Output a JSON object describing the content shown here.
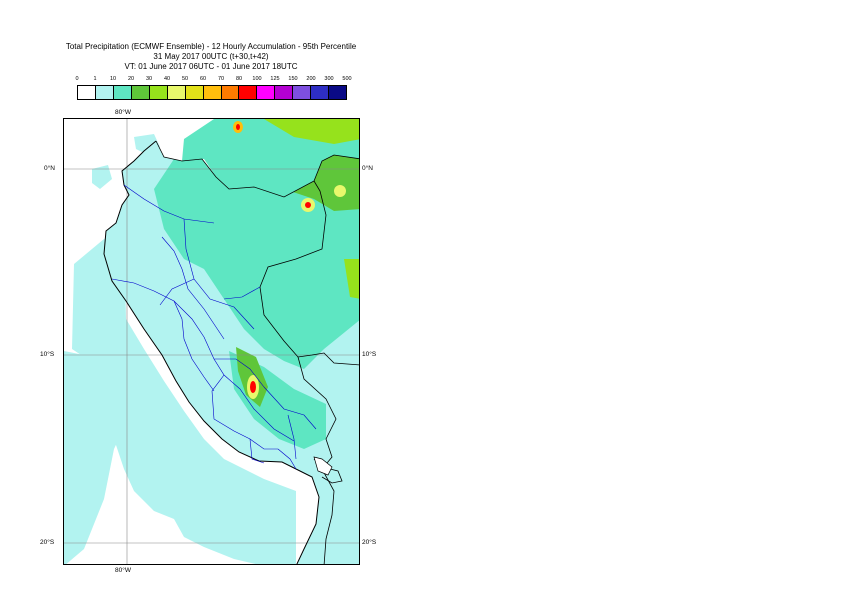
{
  "title": {
    "line1": "Total Precipitation (ECMWF Ensemble) - 12 Hourly Accumulation - 95th Percentile",
    "line2": "31 May 2017 00UTC (t+30,t+42)",
    "line3": "VT: 01 June 2017 06UTC - 01 June 2017 18UTC"
  },
  "legend": {
    "ticks": [
      "0",
      "1",
      "10",
      "20",
      "30",
      "40",
      "50",
      "60",
      "70",
      "80",
      "100",
      "125",
      "150",
      "200",
      "300",
      "500"
    ],
    "colors": [
      "#ffffff",
      "#b2f3f0",
      "#5ee6c2",
      "#5fc63a",
      "#96e21c",
      "#e8f86c",
      "#e2e119",
      "#ffbe0d",
      "#ff7b00",
      "#ff0000",
      "#ff00ff",
      "#b400d2",
      "#7e4fe0",
      "#2e2ec4",
      "#0a0a86"
    ]
  },
  "map": {
    "lat_labels": {
      "eq": "0°N",
      "s10": "10°S",
      "s20": "20°S"
    },
    "lon_label": "80°W",
    "palette": {
      "sea": "#b2f3f0",
      "land_light": "#b2f3f0",
      "land_mid": "#5ee6c2",
      "green": "#5fc63a",
      "lime": "#96e21c",
      "yellow": "#e8f86c",
      "orange": "#ffbe0d",
      "red": "#ff0000",
      "coast": "#000000",
      "admin": "#0000cc",
      "grid": "#888888"
    }
  }
}
